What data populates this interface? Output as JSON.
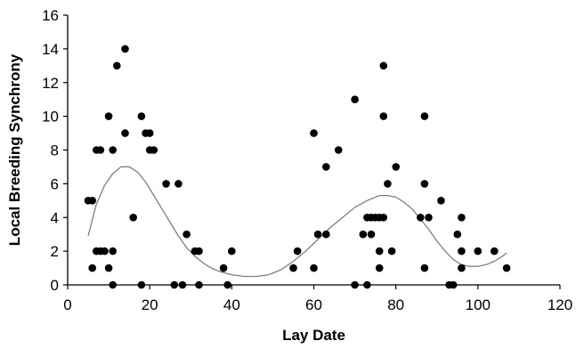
{
  "chart_data": {
    "type": "scatter",
    "title": "",
    "xlabel": "Lay Date",
    "ylabel": "Local Breeding Synchrony",
    "xlim": [
      0,
      120
    ],
    "ylim": [
      0,
      16
    ],
    "x_ticks": [
      "0",
      "20",
      "40",
      "60",
      "80",
      "100",
      "120"
    ],
    "y_ticks": [
      "0",
      "2",
      "4",
      "6",
      "8",
      "10",
      "12",
      "14",
      "16"
    ],
    "grid": false,
    "legend": "none",
    "colors": {
      "points": "#000000",
      "trend": "#7f7f7f",
      "axes": "#000000"
    },
    "series": [
      {
        "kind": "points",
        "values": [
          [
            5,
            5
          ],
          [
            6,
            5
          ],
          [
            6,
            1
          ],
          [
            7,
            8
          ],
          [
            7,
            2
          ],
          [
            8,
            8
          ],
          [
            8,
            2
          ],
          [
            9,
            2
          ],
          [
            10,
            10
          ],
          [
            10,
            1
          ],
          [
            11,
            8
          ],
          [
            11,
            2
          ],
          [
            11,
            0
          ],
          [
            12,
            13
          ],
          [
            14,
            14
          ],
          [
            14,
            9
          ],
          [
            16,
            4
          ],
          [
            18,
            10
          ],
          [
            18,
            0
          ],
          [
            19,
            9
          ],
          [
            20,
            9
          ],
          [
            20,
            8
          ],
          [
            21,
            8
          ],
          [
            24,
            6
          ],
          [
            26,
            0
          ],
          [
            27,
            6
          ],
          [
            28,
            0
          ],
          [
            29,
            3
          ],
          [
            31,
            2
          ],
          [
            32,
            2
          ],
          [
            32,
            0
          ],
          [
            38,
            1
          ],
          [
            39,
            0
          ],
          [
            40,
            2
          ],
          [
            55,
            1
          ],
          [
            56,
            2
          ],
          [
            60,
            9
          ],
          [
            60,
            1
          ],
          [
            61,
            3
          ],
          [
            63,
            3
          ],
          [
            63,
            7
          ],
          [
            66,
            8
          ],
          [
            70,
            11
          ],
          [
            70,
            0
          ],
          [
            72,
            3
          ],
          [
            73,
            4
          ],
          [
            73,
            0
          ],
          [
            74,
            4
          ],
          [
            74,
            3
          ],
          [
            75,
            4
          ],
          [
            76,
            1
          ],
          [
            76,
            2
          ],
          [
            76,
            4
          ],
          [
            77,
            13
          ],
          [
            77,
            10
          ],
          [
            77,
            4
          ],
          [
            78,
            6
          ],
          [
            79,
            2
          ],
          [
            80,
            7
          ],
          [
            86,
            4
          ],
          [
            87,
            10
          ],
          [
            87,
            6
          ],
          [
            87,
            1
          ],
          [
            88,
            4
          ],
          [
            91,
            5
          ],
          [
            93,
            0
          ],
          [
            94,
            0
          ],
          [
            95,
            3
          ],
          [
            96,
            4
          ],
          [
            96,
            2
          ],
          [
            96,
            1
          ],
          [
            100,
            2
          ],
          [
            104,
            2
          ],
          [
            107,
            1
          ]
        ]
      },
      {
        "kind": "trend",
        "values": [
          [
            5,
            2.9
          ],
          [
            7,
            4.8
          ],
          [
            9,
            5.9
          ],
          [
            11,
            6.6
          ],
          [
            13,
            7.0
          ],
          [
            15,
            7.0
          ],
          [
            17,
            6.7
          ],
          [
            19,
            6.1
          ],
          [
            21,
            5.3
          ],
          [
            23,
            4.5
          ],
          [
            25,
            3.7
          ],
          [
            27,
            2.9
          ],
          [
            29,
            2.2
          ],
          [
            31,
            1.7
          ],
          [
            33,
            1.3
          ],
          [
            35,
            1.0
          ],
          [
            37,
            0.8
          ],
          [
            40,
            0.6
          ],
          [
            43,
            0.5
          ],
          [
            46,
            0.5
          ],
          [
            49,
            0.6
          ],
          [
            52,
            0.9
          ],
          [
            55,
            1.4
          ],
          [
            58,
            2.0
          ],
          [
            61,
            2.7
          ],
          [
            64,
            3.4
          ],
          [
            67,
            4.0
          ],
          [
            70,
            4.6
          ],
          [
            73,
            5.0
          ],
          [
            76,
            5.3
          ],
          [
            78,
            5.3
          ],
          [
            80,
            5.2
          ],
          [
            82,
            4.9
          ],
          [
            84,
            4.5
          ],
          [
            86,
            3.9
          ],
          [
            88,
            3.3
          ],
          [
            90,
            2.6
          ],
          [
            92,
            2.0
          ],
          [
            94,
            1.5
          ],
          [
            96,
            1.2
          ],
          [
            98,
            1.1
          ],
          [
            100,
            1.1
          ],
          [
            102,
            1.2
          ],
          [
            104,
            1.4
          ],
          [
            106,
            1.7
          ],
          [
            107,
            1.9
          ]
        ]
      }
    ]
  }
}
